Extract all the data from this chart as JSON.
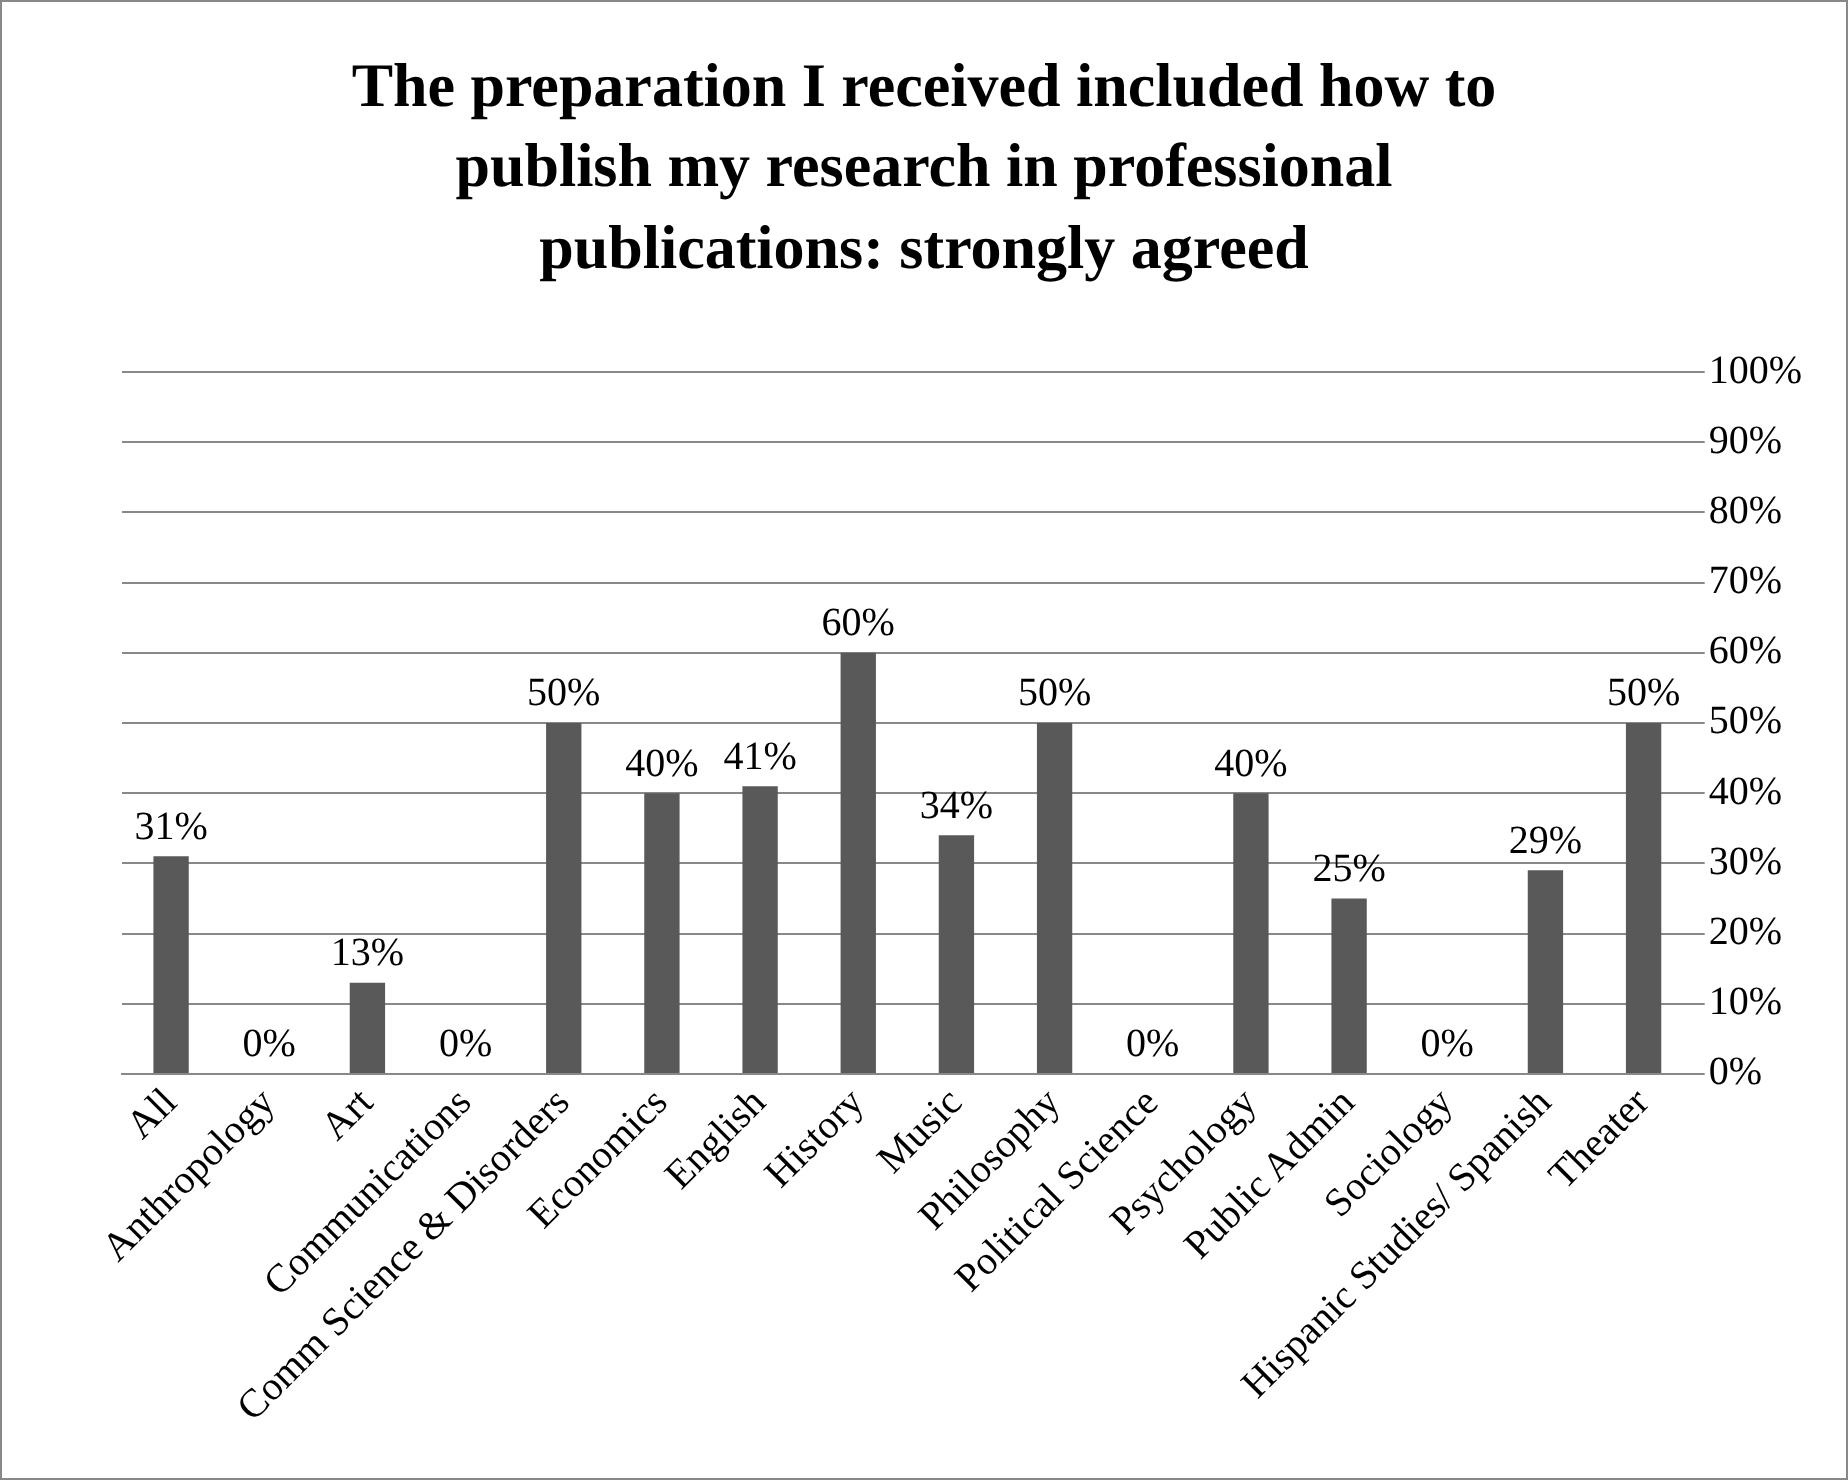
{
  "chart_data": {
    "type": "bar",
    "title": "The preparation I received included how to publish my research in professional publications: strongly agreed",
    "categories": [
      "All",
      "Anthropology",
      "Art",
      "Communications",
      "Comm Science & Disorders",
      "Economics",
      "English",
      "History",
      "Music",
      "Philosophy",
      "Political Science",
      "Psychology",
      "Public Admin",
      "Sociology",
      "Hispanic Studies/ Spanish",
      "Theater"
    ],
    "values": [
      31,
      0,
      13,
      0,
      50,
      40,
      41,
      60,
      34,
      50,
      0,
      40,
      25,
      0,
      29,
      50
    ],
    "value_labels": [
      "31%",
      "0%",
      "13%",
      "0%",
      "50%",
      "40%",
      "41%",
      "60%",
      "34%",
      "50%",
      "0%",
      "40%",
      "25%",
      "0%",
      "29%",
      "50%"
    ],
    "color": "#595959",
    "ylim": [
      0,
      100
    ],
    "yticks": [
      {
        "value": 0,
        "label": "0%"
      },
      {
        "value": 10,
        "label": "10%"
      },
      {
        "value": 20,
        "label": "20%"
      },
      {
        "value": 30,
        "label": "30%"
      },
      {
        "value": 40,
        "label": "40%"
      },
      {
        "value": 50,
        "label": "50%"
      },
      {
        "value": 60,
        "label": "60%"
      },
      {
        "value": 70,
        "label": "70%"
      },
      {
        "value": 80,
        "label": "80%"
      },
      {
        "value": 90,
        "label": "90%"
      },
      {
        "value": 100,
        "label": "100%"
      }
    ],
    "grid": "y",
    "legend": false
  }
}
